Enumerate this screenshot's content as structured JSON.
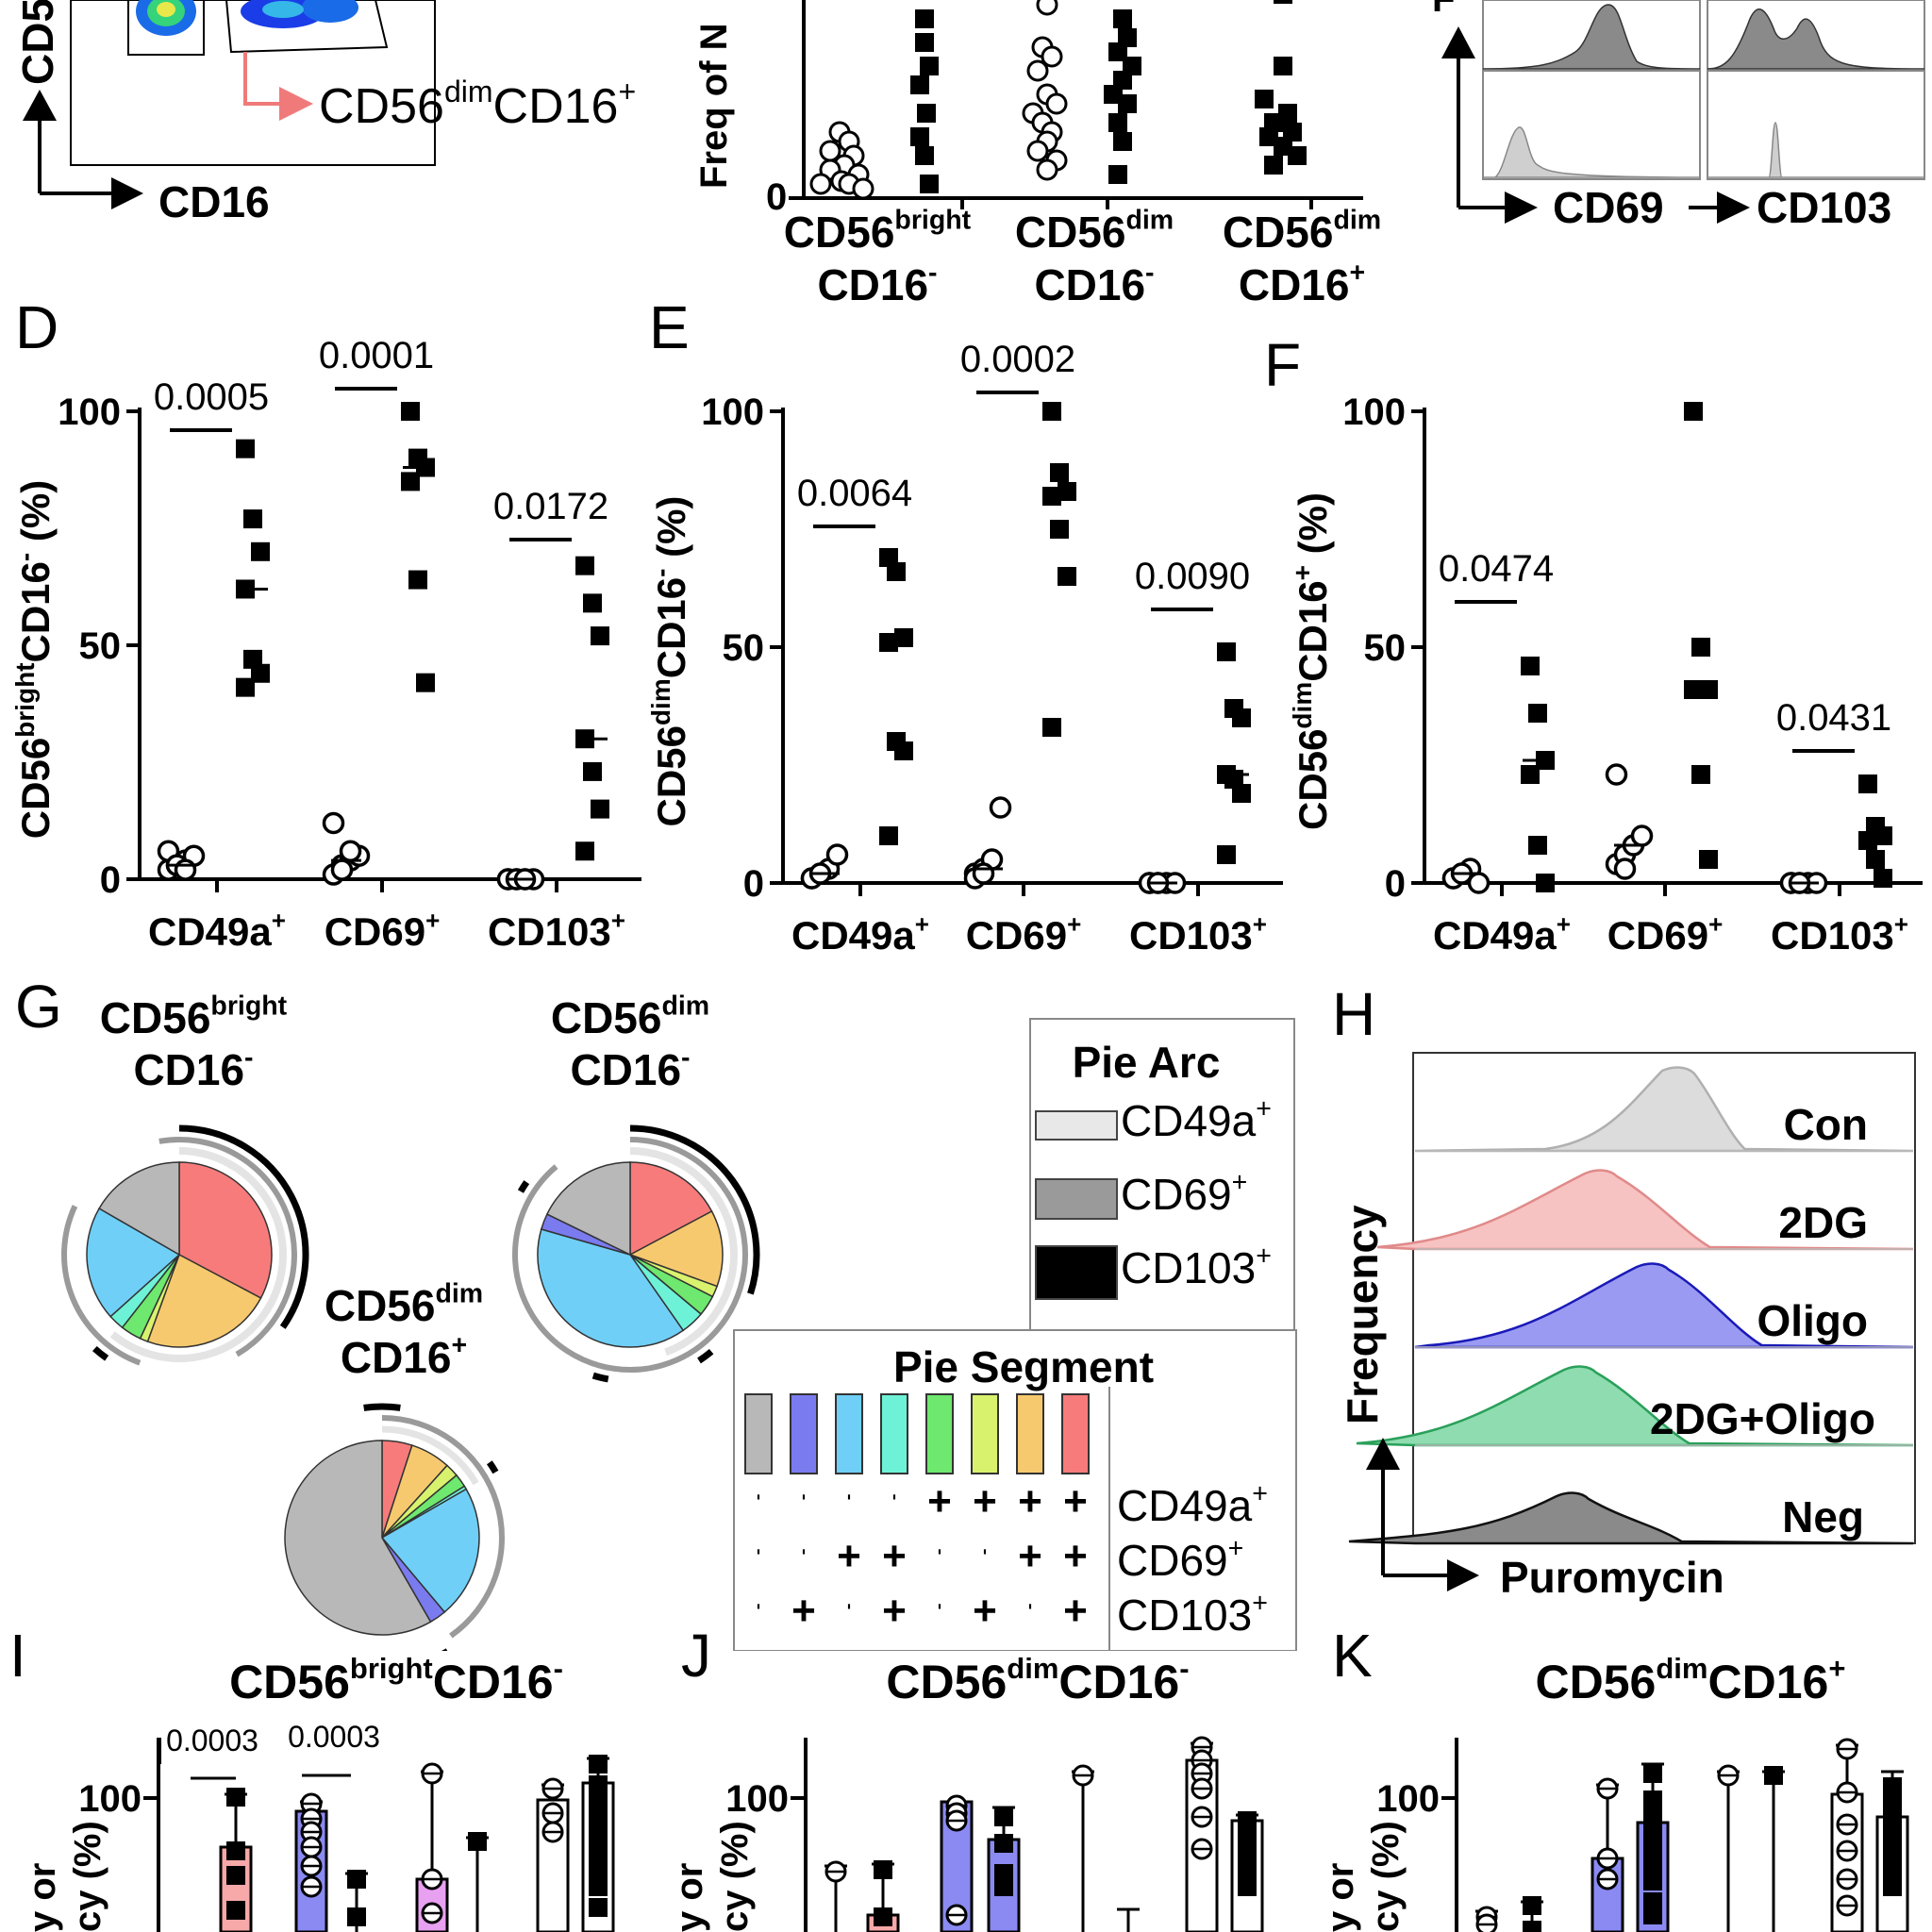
{
  "panel_letters": {
    "D": "D",
    "E": "E",
    "F": "F",
    "G": "G",
    "H": "H",
    "I": "I",
    "J": "J",
    "K": "K"
  },
  "panelA": {
    "gate_label_main": "CD56",
    "gate_label_sup": "dim",
    "gate_label_main2": "CD16",
    "gate_label_sup2": "+",
    "x_axis": "CD16",
    "y_axis_partial": "CD5"
  },
  "panelB": {
    "y_axis_partial": "Freq of N",
    "zero": "0",
    "categories": [
      {
        "l1": "CD56",
        "s1": "bright",
        "l2": "CD16",
        "s2": "-"
      },
      {
        "l1": "CD56",
        "s1": "dim",
        "l2": "CD16",
        "s2": "-"
      },
      {
        "l1": "CD56",
        "s1": "dim",
        "l2": "CD16",
        "s2": "+"
      }
    ]
  },
  "panelC": {
    "y_partial": "F",
    "x1": "CD69",
    "x2": "CD103"
  },
  "scatter_common": {
    "x_categories": [
      "CD49a",
      "CD69",
      "CD103"
    ],
    "x_sup": "+",
    "yticks": [
      "0",
      "50",
      "100"
    ]
  },
  "panelD": {
    "ylabel_main": "CD56",
    "ylabel_sup": "bright",
    "ylabel_main2": "CD16",
    "ylabel_sup2": "-",
    "ylabel_unit": " (%)",
    "pvalues": [
      "0.0005",
      "0.0001",
      "0.0172"
    ]
  },
  "panelE": {
    "ylabel_main": "CD56",
    "ylabel_sup": "dim",
    "ylabel_main2": "CD16",
    "ylabel_sup2": "-",
    "ylabel_unit": " (%)",
    "pvalues": [
      "0.0064",
      "0.0002",
      "0.0090"
    ]
  },
  "panelF": {
    "ylabel_main": "CD56",
    "ylabel_sup": "dim",
    "ylabel_main2": "CD16",
    "ylabel_sup2": "+",
    "ylabel_unit": " (%)",
    "pvalues": [
      "0.0474",
      "0.0431"
    ]
  },
  "chart_data": [
    {
      "type": "scatter",
      "panel": "D",
      "ylim": [
        0,
        100
      ],
      "categories": [
        "CD49a+",
        "CD69+",
        "CD103+"
      ],
      "series": [
        {
          "marker": "open-circle",
          "values": [
            [
              2,
              3,
              4,
              5,
              6,
              3,
              2
            ],
            [
              1,
              3,
              4,
              5,
              12,
              2,
              6
            ],
            [
              0,
              0,
              0,
              0,
              0,
              0,
              0
            ]
          ]
        },
        {
          "marker": "filled-square",
          "values": [
            [
              92,
              77,
              70,
              62,
              47,
              44,
              41
            ],
            [
              100,
              90,
              88,
              85,
              64,
              42
            ],
            [
              67,
              59,
              52,
              30,
              23,
              15,
              6
            ]
          ]
        }
      ]
    },
    {
      "type": "scatter",
      "panel": "E",
      "ylim": [
        0,
        100
      ],
      "categories": [
        "CD49a+",
        "CD69+",
        "CD103+"
      ],
      "series": [
        {
          "marker": "open-circle",
          "values": [
            [
              1,
              2,
              3,
              6,
              1,
              2
            ],
            [
              2,
              3,
              5,
              16,
              1,
              2
            ],
            [
              0,
              0,
              0,
              0,
              0,
              0
            ]
          ]
        },
        {
          "marker": "filled-square",
          "values": [
            [
              69,
              66,
              52,
              51,
              30,
              28,
              10
            ],
            [
              100,
              87,
              83,
              82,
              75,
              65,
              33
            ],
            [
              49,
              37,
              35,
              23,
              22,
              19,
              6
            ]
          ]
        }
      ]
    },
    {
      "type": "scatter",
      "panel": "F",
      "ylim": [
        0,
        100
      ],
      "categories": [
        "CD49a+",
        "CD69+",
        "CD103+"
      ],
      "series": [
        {
          "marker": "open-circle",
          "values": [
            [
              1,
              2,
              3,
              0,
              1,
              2
            ],
            [
              4,
              6,
              8,
              10,
              23,
              3
            ],
            [
              0,
              0,
              0,
              0,
              0,
              0
            ]
          ]
        },
        {
          "marker": "filled-square",
          "values": [
            [
              46,
              36,
              26,
              23,
              8,
              0
            ],
            [
              100,
              50,
              41,
              41,
              23,
              5
            ],
            [
              21,
              12,
              10,
              9,
              5,
              1
            ]
          ]
        }
      ]
    }
  ],
  "panelG": {
    "pies": [
      {
        "l1": "CD56",
        "s1": "bright",
        "l2": "CD16",
        "s2": "-"
      },
      {
        "l1": "CD56",
        "s1": "dim",
        "l2": "CD16",
        "s2": "-"
      },
      {
        "l1": "CD56",
        "s1": "dim",
        "l2": "CD16",
        "s2": "+"
      }
    ],
    "arc_legend_title": "Pie Arc",
    "arc_legend": [
      {
        "label": "CD49a",
        "sup": "+",
        "color": "#e8e8e8"
      },
      {
        "label": "CD69",
        "sup": "+",
        "color": "#9a9a9a"
      },
      {
        "label": "CD103",
        "sup": "+",
        "color": "#000000"
      }
    ],
    "segment_legend_title": "Pie Segment",
    "segment_colors": [
      "#b8b8b8",
      "#7b7bf0",
      "#6fcff7",
      "#6ef2d7",
      "#6ee86e",
      "#d8f26e",
      "#f7c96e",
      "#f77b7b"
    ],
    "segment_rows": [
      {
        "label": "CD49a",
        "sup": "+",
        "signs": [
          "-",
          "-",
          "-",
          "-",
          "+",
          "+",
          "+",
          "+"
        ]
      },
      {
        "label": "CD69",
        "sup": "+",
        "signs": [
          "-",
          "-",
          "+",
          "+",
          "-",
          "-",
          "+",
          "+"
        ]
      },
      {
        "label": "CD103",
        "sup": "+",
        "signs": [
          "-",
          "+",
          "-",
          "+",
          "-",
          "+",
          "-",
          "+"
        ]
      }
    ]
  },
  "panelH": {
    "ylabel": "Frequency",
    "xlabel": "Puromycin",
    "rows": [
      {
        "label": "Con",
        "fill": "#dcdcdc",
        "stroke": "#b0b0b0"
      },
      {
        "label": "2DG",
        "fill": "#f7c2c2",
        "stroke": "#e08a8a"
      },
      {
        "label": "Oligo",
        "fill": "#9a9af2",
        "stroke": "#1a1ab8"
      },
      {
        "label": "2DG+Oligo",
        "fill": "#8edcb0",
        "stroke": "#2aa05a"
      },
      {
        "label": "Neg",
        "fill": "#8a8a8a",
        "stroke": "#111111"
      }
    ]
  },
  "panelI": {
    "t_main": "CD56",
    "t_sup": "bright",
    "t_main2": "CD16",
    "t_sup2": "-",
    "tick": "100",
    "pvalues": [
      "0.0003",
      "0.0003"
    ],
    "ylab1": "y or",
    "ylab2": "cy (%)"
  },
  "panelJ": {
    "t_main": "CD56",
    "t_sup": "dim",
    "t_main2": "CD16",
    "t_sup2": "-",
    "tick": "100",
    "ylab1": "y or",
    "ylab2": "cy (%)"
  },
  "panelK": {
    "t_main": "CD56",
    "t_sup": "dim",
    "t_main2": "CD16",
    "t_sup2": "+",
    "tick": "100",
    "ylab1": "y or",
    "ylab2": "cy (%)"
  }
}
